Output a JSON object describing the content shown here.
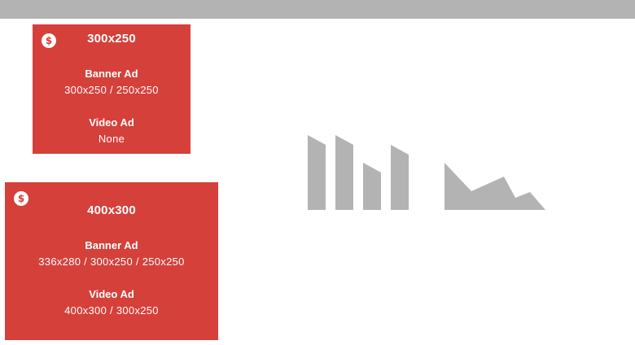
{
  "colors": {
    "top_bar": "#b3b3b3",
    "ad_box": "#d5403a",
    "text": "#ffffff",
    "placeholder_graphic": "#b3b3b3"
  },
  "ads": [
    {
      "icon": "dollar-icon",
      "title": "300x250",
      "banner_label": "Banner Ad",
      "banner_sizes": "300x250 / 250x250",
      "video_label": "Video Ad",
      "video_sizes": "None"
    },
    {
      "icon": "dollar-icon",
      "title": "400x300",
      "banner_label": "Banner Ad",
      "banner_sizes": "336x280 / 300x250 / 250x250",
      "video_label": "Video Ad",
      "video_sizes": "400x300 / 300x250"
    }
  ],
  "placeholder_graphic": {
    "icon": "chart-placeholder-icon"
  }
}
